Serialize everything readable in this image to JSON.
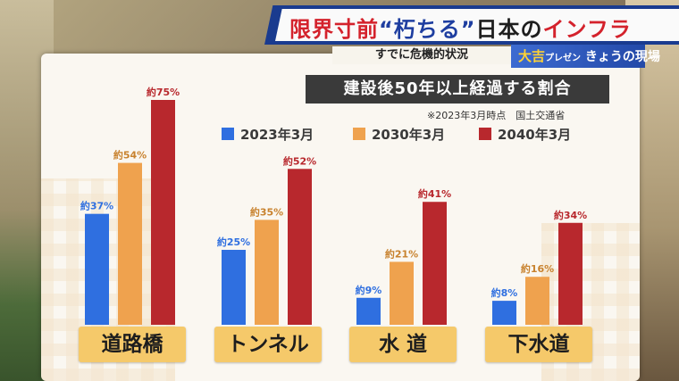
{
  "caption": {
    "headline_part1": "限界寸前",
    "headline_part2": "“朽ちる”",
    "headline_part3": "日本の",
    "headline_part4": "インフラ",
    "sub": "すでに危機的状況",
    "program_prefix": "大吉",
    "program_small": "プレゼン",
    "program_name": "きょうの現場"
  },
  "colors": {
    "blue": "#2f6fe0",
    "orange": "#efa24e",
    "red": "#b8282d",
    "blue_text": "#2f6fe0",
    "orange_text": "#c8822e",
    "red_text": "#b8282d"
  },
  "chart_data": {
    "type": "bar",
    "title": "建設後50年以上経過する割合",
    "note": "※2023年3月時点　国土交通省",
    "categories": [
      "道路橋",
      "トンネル",
      "水 道",
      "下水道"
    ],
    "series": [
      {
        "name": "2023年3月",
        "values": [
          37,
          25,
          9,
          8
        ],
        "labels": [
          "約37%",
          "約25%",
          "約9%",
          "約8%"
        ]
      },
      {
        "name": "2030年3月",
        "values": [
          54,
          35,
          21,
          16
        ],
        "labels": [
          "約54%",
          "約35%",
          "約21%",
          "約16%"
        ]
      },
      {
        "name": "2040年3月",
        "values": [
          75,
          52,
          41,
          34
        ],
        "labels": [
          "約75%",
          "約52%",
          "約41%",
          "約34%"
        ]
      }
    ],
    "ylim": [
      0,
      75
    ],
    "legend_position": "top",
    "grid": false
  }
}
